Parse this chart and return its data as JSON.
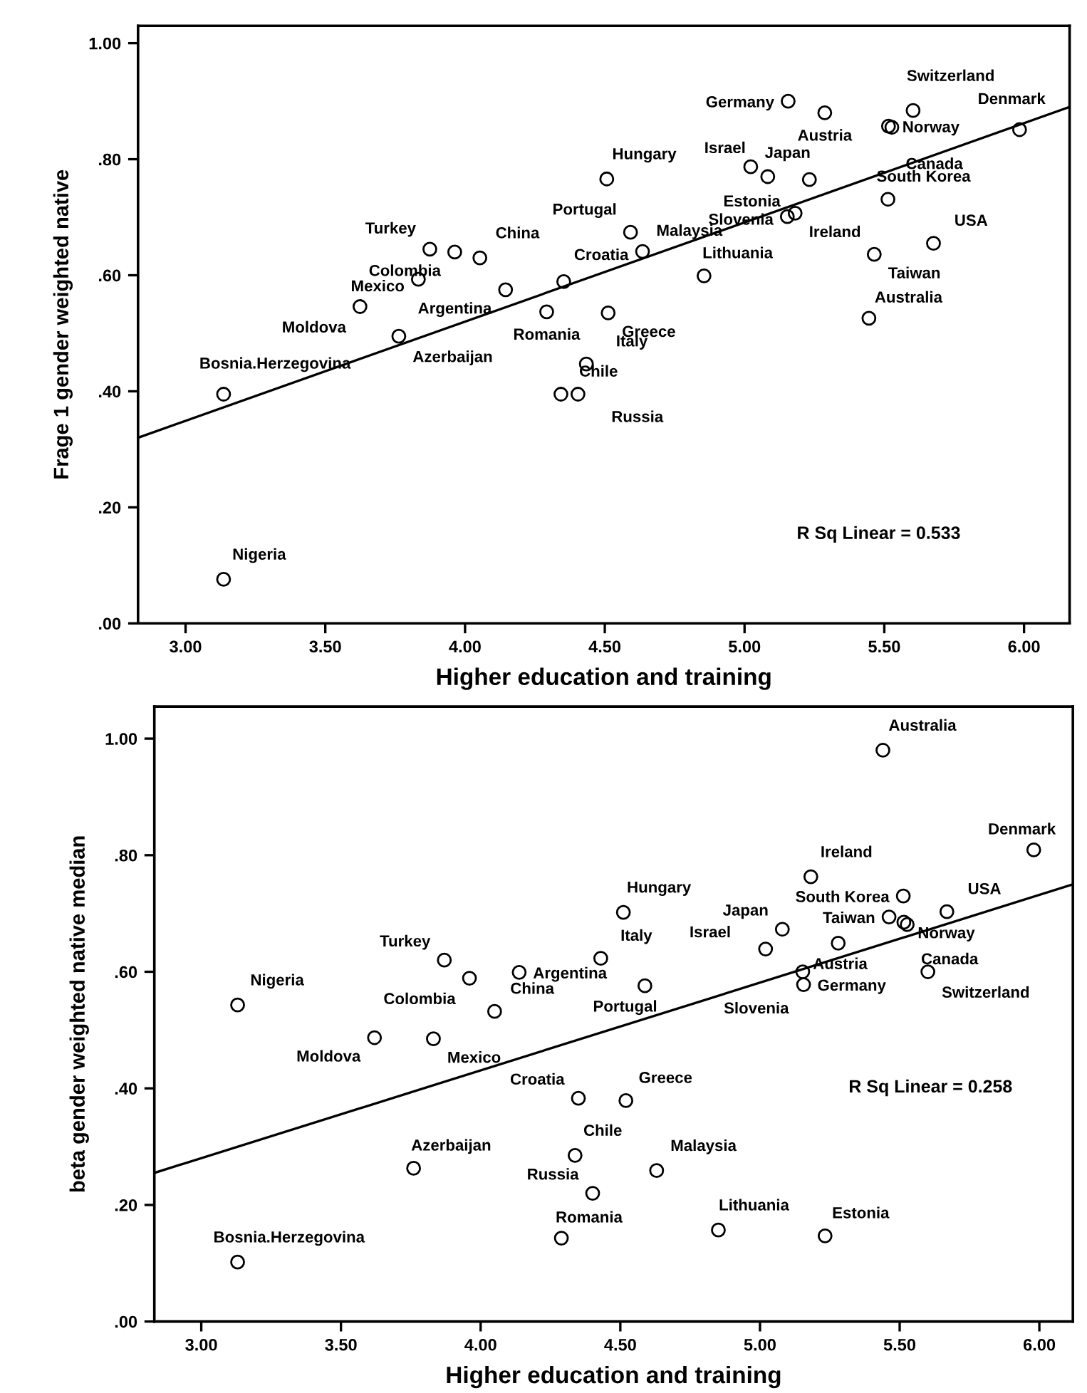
{
  "chart_data": [
    {
      "type": "scatter",
      "xlabel": "Higher education and training",
      "ylabel": "Frage 1 gender weighted native",
      "xlim": [
        2.83,
        6.163
      ],
      "ylim": [
        0,
        1.03
      ],
      "xticks": [
        {
          "value": 3,
          "label": "3.00"
        },
        {
          "value": 3.5,
          "label": "3.50"
        },
        {
          "value": 4,
          "label": "4.00"
        },
        {
          "value": 4.5,
          "label": "4.50"
        },
        {
          "value": 5,
          "label": "5.00"
        },
        {
          "value": 5.5,
          "label": "5.50"
        },
        {
          "value": 6,
          "label": "6.00"
        }
      ],
      "yticks": [
        {
          "value": 0,
          "label": ".00"
        },
        {
          "value": 0.2,
          "label": ".20"
        },
        {
          "value": 0.4,
          "label": ".40"
        },
        {
          "value": 0.6,
          "label": ".60"
        },
        {
          "value": 0.8,
          "label": ".80"
        },
        {
          "value": 1,
          "label": "1.00"
        }
      ],
      "series": [
        {
          "marker": "circle",
          "color": "#000000",
          "x": [
            3.136,
            3.136,
            3.624,
            3.833,
            3.874,
            3.963,
            4.053,
            4.145,
            3.763,
            4.292,
            4.353,
            4.512,
            4.434,
            4.343,
            4.404,
            4.507,
            4.592,
            4.635,
            4.855,
            5.156,
            5.287,
            5.603,
            5.515,
            5.527,
            5.984,
            5.022,
            5.083,
            5.232,
            5.153,
            5.181,
            5.513,
            5.676,
            5.464,
            5.445
          ],
          "values": [
            0.395,
            0.076,
            0.546,
            0.593,
            0.645,
            0.64,
            0.63,
            0.575,
            0.495,
            0.537,
            0.589,
            0.535,
            0.447,
            0.395,
            0.395,
            0.766,
            0.674,
            0.641,
            0.599,
            0.9,
            0.88,
            0.884,
            0.857,
            0.855,
            0.851,
            0.787,
            0.77,
            0.765,
            0.701,
            0.707,
            0.731,
            0.655,
            0.636,
            0.526
          ]
        },
        {
          "type": "line",
          "color": "#000000",
          "x": [
            2.83,
            6.163
          ],
          "values": [
            0.32,
            0.89
          ]
        }
      ],
      "annotations": [
        {
          "text": "Bosnia.Herzegovina",
          "x": 3.136,
          "y": 0.395
        },
        {
          "text": "Nigeria",
          "x": 3.136,
          "y": 0.076
        },
        {
          "text": "Moldova",
          "x": 3.624,
          "y": 0.546
        },
        {
          "text": "Mexico",
          "x": 3.833,
          "y": 0.593
        },
        {
          "text": "Turkey",
          "x": 3.874,
          "y": 0.645
        },
        {
          "text": "Colombia",
          "x": 3.963,
          "y": 0.64
        },
        {
          "text": "China",
          "x": 4.053,
          "y": 0.63
        },
        {
          "text": "Argentina",
          "x": 4.145,
          "y": 0.575
        },
        {
          "text": "Azerbaijan",
          "x": 3.763,
          "y": 0.495
        },
        {
          "text": "Romania",
          "x": 4.292,
          "y": 0.537
        },
        {
          "text": "Croatia",
          "x": 4.353,
          "y": 0.589
        },
        {
          "text": "Greece",
          "x": 4.512,
          "y": 0.535
        },
        {
          "text": "Italy",
          "x": 4.434,
          "y": 0.447
        },
        {
          "text": "Chile",
          "x": 4.343,
          "y": 0.395
        },
        {
          "text": "Russia",
          "x": 4.404,
          "y": 0.395
        },
        {
          "text": "Hungary",
          "x": 4.507,
          "y": 0.766
        },
        {
          "text": "Portugal",
          "x": 4.592,
          "y": 0.674
        },
        {
          "text": "Malaysia",
          "x": 4.635,
          "y": 0.641
        },
        {
          "text": "Lithuania",
          "x": 4.855,
          "y": 0.599
        },
        {
          "text": "Germany",
          "x": 5.156,
          "y": 0.9
        },
        {
          "text": "Austria",
          "x": 5.287,
          "y": 0.88
        },
        {
          "text": "Switzerland",
          "x": 5.603,
          "y": 0.884
        },
        {
          "text": "Norway",
          "x": 5.515,
          "y": 0.857
        },
        {
          "text": "Canada",
          "x": 5.527,
          "y": 0.855
        },
        {
          "text": "Denmark",
          "x": 5.984,
          "y": 0.851
        },
        {
          "text": "Israel",
          "x": 5.022,
          "y": 0.787
        },
        {
          "text": "Estonia",
          "x": 5.083,
          "y": 0.77
        },
        {
          "text": "Japan",
          "x": 5.232,
          "y": 0.765
        },
        {
          "text": "Slovenia",
          "x": 5.153,
          "y": 0.701
        },
        {
          "text": "Ireland",
          "x": 5.181,
          "y": 0.707
        },
        {
          "text": "South Korea",
          "x": 5.513,
          "y": 0.731
        },
        {
          "text": "USA",
          "x": 5.676,
          "y": 0.655
        },
        {
          "text": "Taiwan",
          "x": 5.464,
          "y": 0.636
        },
        {
          "text": "Australia",
          "x": 5.445,
          "y": 0.526
        },
        "R Sq Linear = 0.533"
      ]
    },
    {
      "type": "scatter",
      "xlabel": "Higher education and training",
      "ylabel": "beta gender weighted native median",
      "xlim": [
        2.832,
        6.12
      ],
      "ylim": [
        0,
        1.055
      ],
      "xticks": [
        {
          "value": 3,
          "label": "3.00"
        },
        {
          "value": 3.5,
          "label": "3.50"
        },
        {
          "value": 4,
          "label": "4.00"
        },
        {
          "value": 4.5,
          "label": "4.50"
        },
        {
          "value": 5,
          "label": "5.00"
        },
        {
          "value": 5.5,
          "label": "5.50"
        },
        {
          "value": 6,
          "label": "6.00"
        }
      ],
      "yticks": [
        {
          "value": 0,
          "label": ".00"
        },
        {
          "value": 0.2,
          "label": ".20"
        },
        {
          "value": 0.4,
          "label": ".40"
        },
        {
          "value": 0.6,
          "label": ".60"
        },
        {
          "value": 0.8,
          "label": ".80"
        },
        {
          "value": 1,
          "label": "1.00"
        }
      ],
      "series": [
        {
          "marker": "circle",
          "color": "#000000",
          "x": [
            3.13,
            3.13,
            3.87,
            3.96,
            4.138,
            4.05,
            3.62,
            3.831,
            4.35,
            3.76,
            4.338,
            4.401,
            4.289,
            4.43,
            4.511,
            4.588,
            4.52,
            4.63,
            4.851,
            5.233,
            5.44,
            5.98,
            5.182,
            5.513,
            5.669,
            5.462,
            5.515,
            5.527,
            5.08,
            5.02,
            5.28,
            5.156,
            5.153,
            5.601
          ],
          "values": [
            0.543,
            0.102,
            0.62,
            0.589,
            0.599,
            0.532,
            0.487,
            0.485,
            0.383,
            0.263,
            0.285,
            0.22,
            0.143,
            0.623,
            0.702,
            0.576,
            0.379,
            0.259,
            0.157,
            0.147,
            0.98,
            0.809,
            0.763,
            0.73,
            0.703,
            0.694,
            0.685,
            0.681,
            0.673,
            0.639,
            0.649,
            0.578,
            0.6,
            0.6
          ]
        },
        {
          "type": "line",
          "color": "#000000",
          "x": [
            2.832,
            6.12
          ],
          "values": [
            0.255,
            0.75
          ]
        }
      ],
      "annotations": [
        {
          "text": "Nigeria",
          "x": 3.13,
          "y": 0.543
        },
        {
          "text": "Bosnia.Herzegovina",
          "x": 3.13,
          "y": 0.102
        },
        {
          "text": "Turkey",
          "x": 3.87,
          "y": 0.62
        },
        {
          "text": "Colombia",
          "x": 3.96,
          "y": 0.589
        },
        {
          "text": "Argentina",
          "x": 4.138,
          "y": 0.599
        },
        {
          "text": "China",
          "x": 4.05,
          "y": 0.532
        },
        {
          "text": "Moldova",
          "x": 3.62,
          "y": 0.487
        },
        {
          "text": "Mexico",
          "x": 3.831,
          "y": 0.485
        },
        {
          "text": "Croatia",
          "x": 4.35,
          "y": 0.383
        },
        {
          "text": "Azerbaijan",
          "x": 3.76,
          "y": 0.263
        },
        {
          "text": "Chile",
          "x": 4.338,
          "y": 0.285
        },
        {
          "text": "Russia",
          "x": 4.401,
          "y": 0.22
        },
        {
          "text": "Romania",
          "x": 4.289,
          "y": 0.143
        },
        {
          "text": "Italy",
          "x": 4.43,
          "y": 0.623
        },
        {
          "text": "Hungary",
          "x": 4.511,
          "y": 0.702
        },
        {
          "text": "Portugal",
          "x": 4.588,
          "y": 0.576
        },
        {
          "text": "Greece",
          "x": 4.52,
          "y": 0.379
        },
        {
          "text": "Malaysia",
          "x": 4.63,
          "y": 0.259
        },
        {
          "text": "Lithuania",
          "x": 4.851,
          "y": 0.157
        },
        {
          "text": "Estonia",
          "x": 5.233,
          "y": 0.147
        },
        {
          "text": "Australia",
          "x": 5.44,
          "y": 0.98
        },
        {
          "text": "Denmark",
          "x": 5.98,
          "y": 0.809
        },
        {
          "text": "Ireland",
          "x": 5.182,
          "y": 0.763
        },
        {
          "text": "South Korea",
          "x": 5.513,
          "y": 0.73
        },
        {
          "text": "USA",
          "x": 5.669,
          "y": 0.703
        },
        {
          "text": "Taiwan",
          "x": 5.462,
          "y": 0.694
        },
        {
          "text": "Norway",
          "x": 5.515,
          "y": 0.685
        },
        {
          "text": "Canada",
          "x": 5.527,
          "y": 0.681
        },
        {
          "text": "Japan",
          "x": 5.08,
          "y": 0.673
        },
        {
          "text": "Israel",
          "x": 5.02,
          "y": 0.639
        },
        {
          "text": "Austria",
          "x": 5.28,
          "y": 0.649
        },
        {
          "text": "Germany",
          "x": 5.156,
          "y": 0.578
        },
        {
          "text": "Slovenia",
          "x": 5.153,
          "y": 0.6
        },
        {
          "text": "Switzerland",
          "x": 5.601,
          "y": 0.6
        },
        "R Sq Linear = 0.258"
      ]
    }
  ]
}
